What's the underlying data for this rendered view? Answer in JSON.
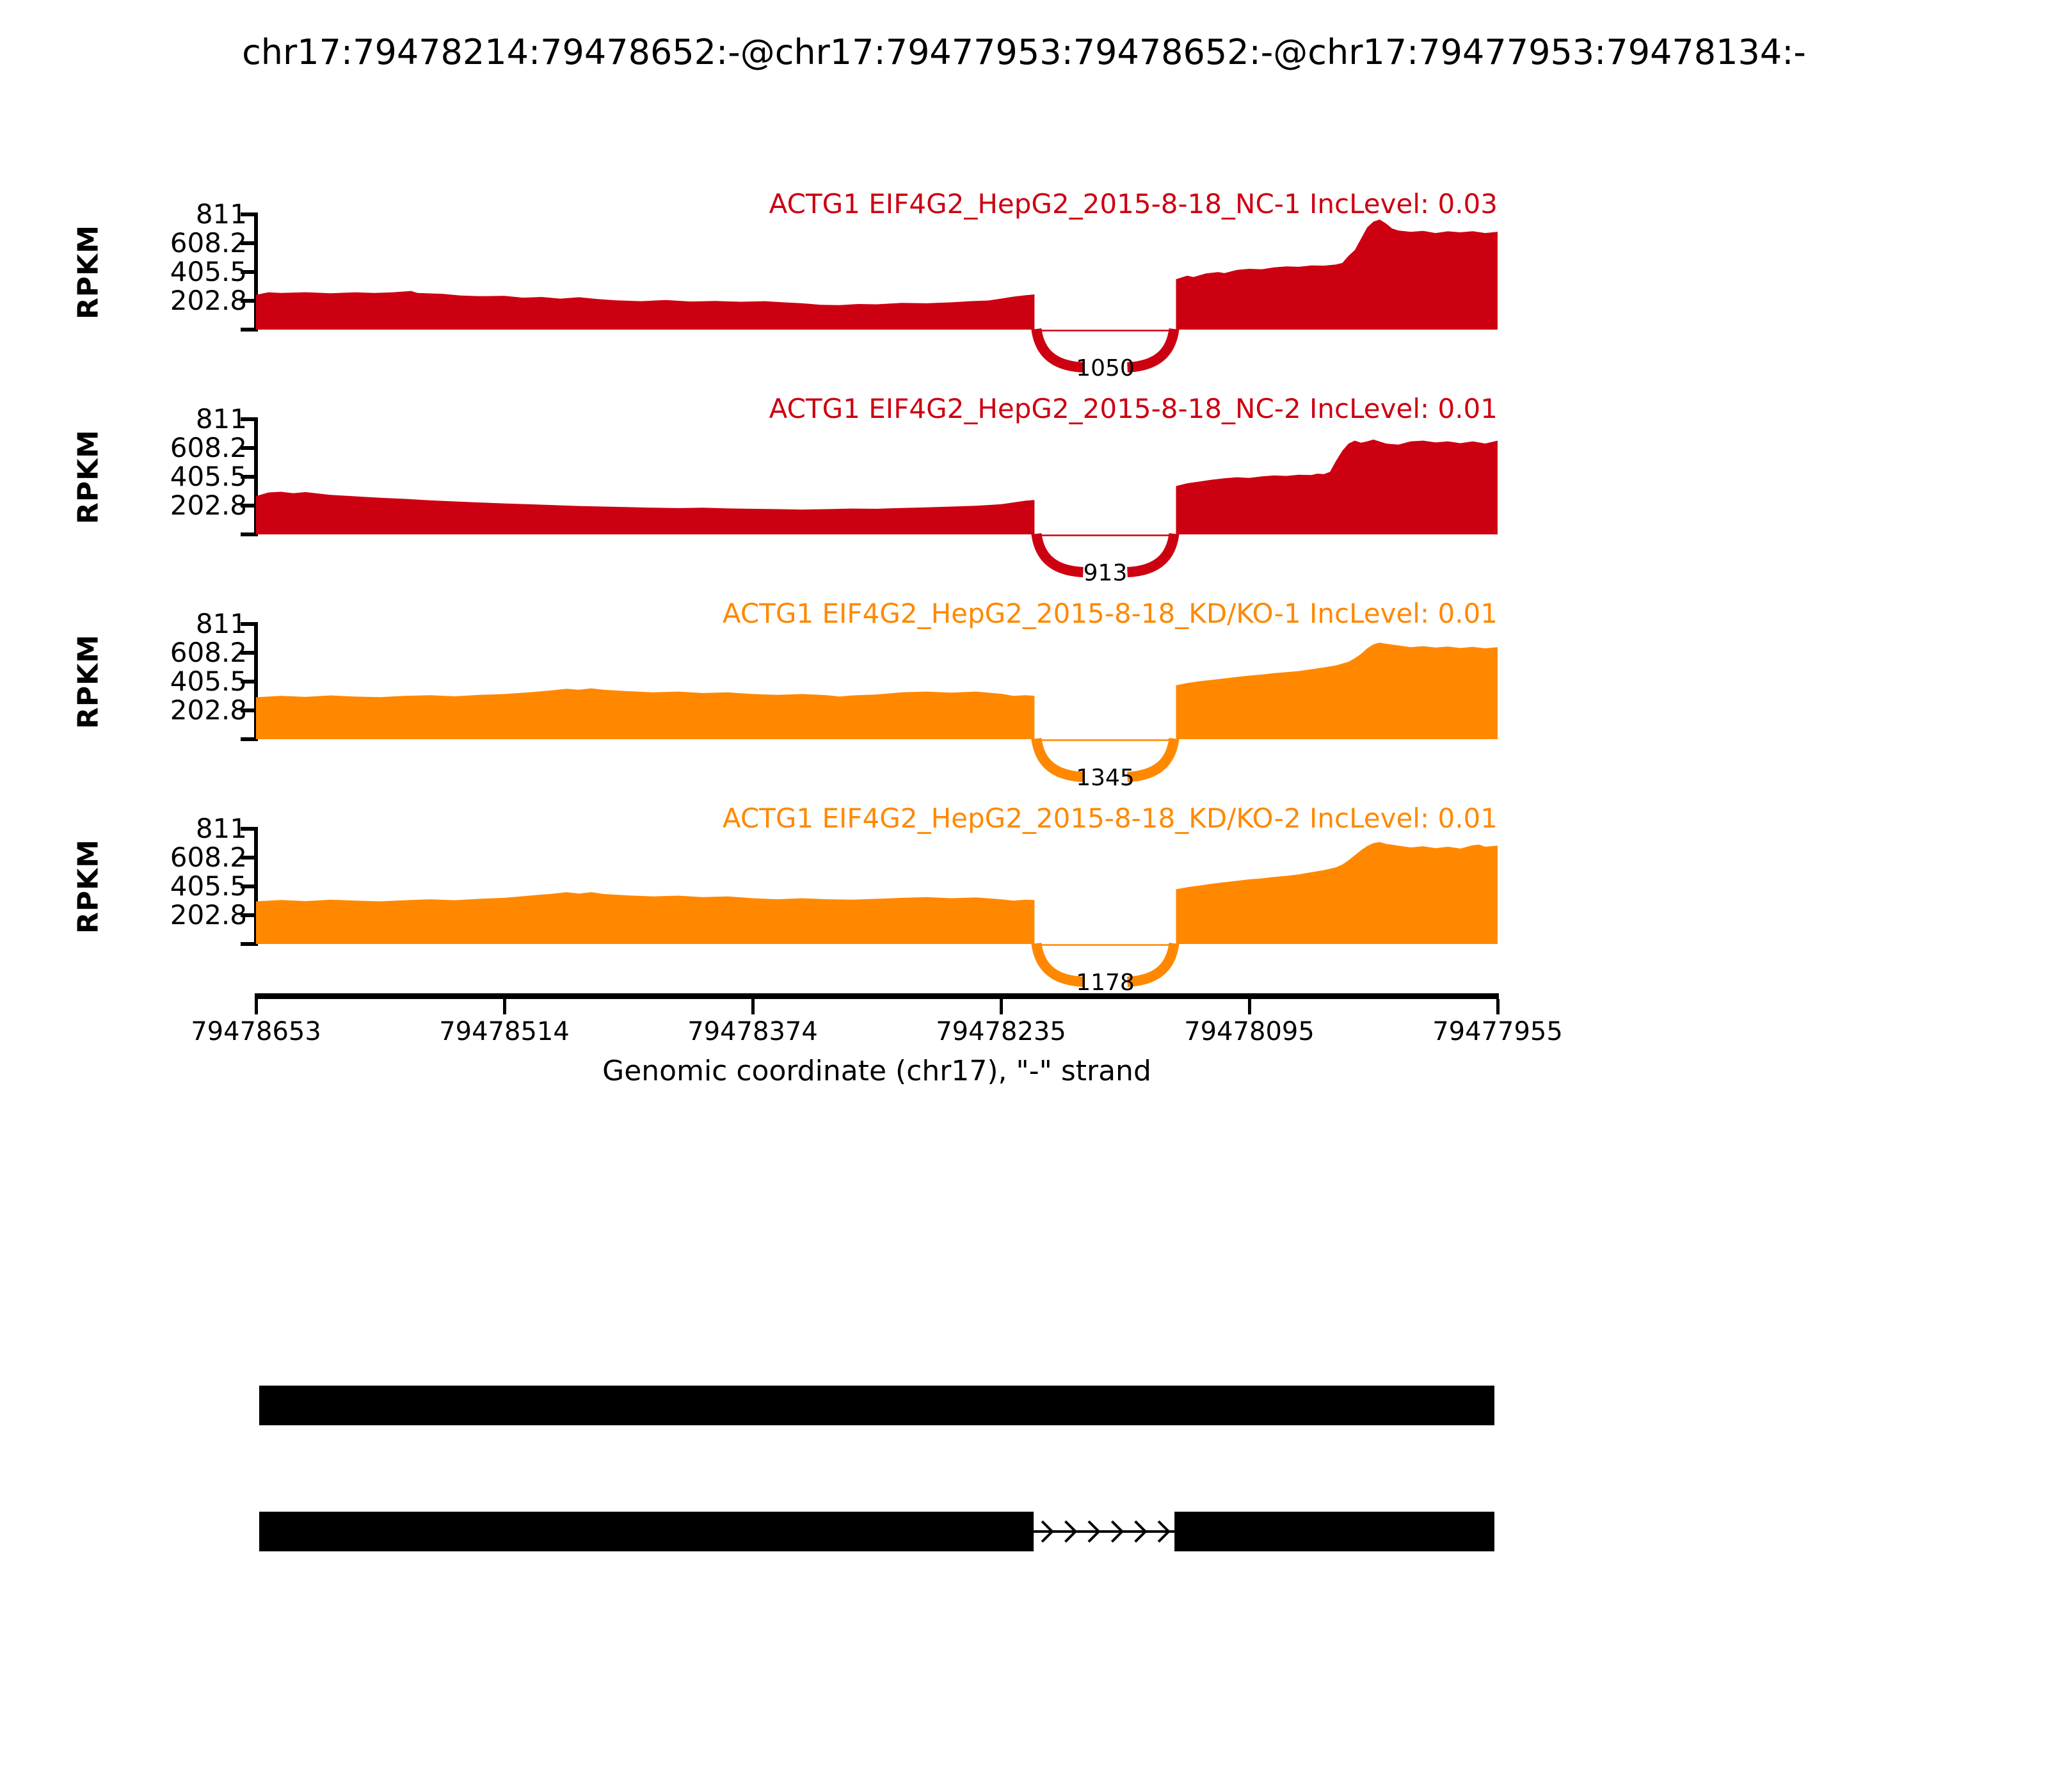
{
  "title": "chr17:79478214:79478652:-@chr17:79477953:79478652:-@chr17:79477953:79478134:-",
  "colors": {
    "red": "#CC0011",
    "orange": "#FF8800",
    "gene": "#000000"
  },
  "y_axis": {
    "label": "RPKM",
    "ticks": [
      "811",
      "608.2",
      "405.5",
      "202.8"
    ]
  },
  "x_axis": {
    "label": "Genomic coordinate (chr17), \"-\" strand",
    "ticks": [
      "79478653",
      "79478514",
      "79478374",
      "79478235",
      "79478095",
      "79477955"
    ]
  },
  "tracks": [
    {
      "label": "ACTG1 EIF4G2_HepG2_2015-8-18_NC-1 IncLevel: 0.03",
      "junction_count": "1050",
      "color": "#CC0011"
    },
    {
      "label": "ACTG1 EIF4G2_HepG2_2015-8-18_NC-2 IncLevel: 0.01",
      "junction_count": "913",
      "color": "#CC0011"
    },
    {
      "label": "ACTG1 EIF4G2_HepG2_2015-8-18_KD/KO-1 IncLevel: 0.01",
      "junction_count": "1345",
      "color": "#FF8800"
    },
    {
      "label": "ACTG1 EIF4G2_HepG2_2015-8-18_KD/KO-2 IncLevel: 0.01",
      "junction_count": "1178",
      "color": "#FF8800"
    }
  ],
  "chart_data": {
    "type": "area",
    "title": "chr17:79478214:79478652:-@chr17:79477953:79478652:-@chr17:79477953:79478134:-",
    "xlabel": "Genomic coordinate (chr17), \"-\" strand",
    "ylabel": "RPKM",
    "x_tick_labels": [
      79478653,
      79478514,
      79478374,
      79478235,
      79478095,
      79477955
    ],
    "x_axis_direction": "decreasing",
    "y_ticks": [
      811,
      608.2,
      405.5,
      202.8
    ],
    "ylim": [
      0,
      811
    ],
    "grid": false,
    "exon_gap_fractions": [
      0.627,
      0.741
    ],
    "series": [
      {
        "name": "ACTG1 EIF4G2_HepG2_2015-8-18_NC-1",
        "inc_level": 0.03,
        "junction_reads": 1050,
        "color": "#CC0011",
        "left_profile": [
          [
            0,
            245
          ],
          [
            0.01,
            262
          ],
          [
            0.02,
            258
          ],
          [
            0.04,
            263
          ],
          [
            0.06,
            256
          ],
          [
            0.08,
            262
          ],
          [
            0.095,
            258
          ],
          [
            0.11,
            262
          ],
          [
            0.125,
            272
          ],
          [
            0.13,
            258
          ],
          [
            0.15,
            252
          ],
          [
            0.165,
            240
          ],
          [
            0.18,
            235
          ],
          [
            0.2,
            238
          ],
          [
            0.215,
            225
          ],
          [
            0.23,
            230
          ],
          [
            0.245,
            218
          ],
          [
            0.26,
            228
          ],
          [
            0.275,
            215
          ],
          [
            0.29,
            206
          ],
          [
            0.31,
            200
          ],
          [
            0.33,
            208
          ],
          [
            0.35,
            198
          ],
          [
            0.37,
            202
          ],
          [
            0.39,
            196
          ],
          [
            0.41,
            200
          ],
          [
            0.425,
            192
          ],
          [
            0.44,
            185
          ],
          [
            0.455,
            175
          ],
          [
            0.47,
            172
          ],
          [
            0.485,
            180
          ],
          [
            0.5,
            178
          ],
          [
            0.52,
            188
          ],
          [
            0.54,
            185
          ],
          [
            0.56,
            192
          ],
          [
            0.575,
            200
          ],
          [
            0.59,
            205
          ],
          [
            0.6,
            218
          ],
          [
            0.61,
            232
          ],
          [
            0.62,
            242
          ],
          [
            0.627,
            248
          ]
        ],
        "right_profile": [
          [
            0.741,
            355
          ],
          [
            0.75,
            380
          ],
          [
            0.755,
            370
          ],
          [
            0.765,
            395
          ],
          [
            0.775,
            405
          ],
          [
            0.78,
            398
          ],
          [
            0.79,
            420
          ],
          [
            0.8,
            428
          ],
          [
            0.81,
            425
          ],
          [
            0.82,
            438
          ],
          [
            0.83,
            445
          ],
          [
            0.84,
            442
          ],
          [
            0.85,
            452
          ],
          [
            0.86,
            450
          ],
          [
            0.87,
            458
          ],
          [
            0.875,
            470
          ],
          [
            0.88,
            520
          ],
          [
            0.885,
            560
          ],
          [
            0.89,
            640
          ],
          [
            0.895,
            720
          ],
          [
            0.9,
            760
          ],
          [
            0.905,
            775
          ],
          [
            0.91,
            748
          ],
          [
            0.915,
            712
          ],
          [
            0.92,
            698
          ],
          [
            0.93,
            688
          ],
          [
            0.94,
            695
          ],
          [
            0.95,
            680
          ],
          [
            0.96,
            692
          ],
          [
            0.97,
            685
          ],
          [
            0.98,
            693
          ],
          [
            0.99,
            680
          ],
          [
            1,
            688
          ]
        ]
      },
      {
        "name": "ACTG1 EIF4G2_HepG2_2015-8-18_NC-2",
        "inc_level": 0.01,
        "junction_reads": 913,
        "color": "#CC0011",
        "left_profile": [
          [
            0,
            270
          ],
          [
            0.01,
            295
          ],
          [
            0.02,
            300
          ],
          [
            0.03,
            290
          ],
          [
            0.04,
            298
          ],
          [
            0.05,
            288
          ],
          [
            0.06,
            278
          ],
          [
            0.08,
            268
          ],
          [
            0.1,
            258
          ],
          [
            0.12,
            250
          ],
          [
            0.14,
            240
          ],
          [
            0.16,
            232
          ],
          [
            0.18,
            225
          ],
          [
            0.2,
            218
          ],
          [
            0.22,
            212
          ],
          [
            0.24,
            206
          ],
          [
            0.26,
            200
          ],
          [
            0.28,
            196
          ],
          [
            0.3,
            192
          ],
          [
            0.32,
            188
          ],
          [
            0.34,
            185
          ],
          [
            0.36,
            188
          ],
          [
            0.38,
            183
          ],
          [
            0.4,
            180
          ],
          [
            0.42,
            178
          ],
          [
            0.44,
            175
          ],
          [
            0.46,
            178
          ],
          [
            0.48,
            182
          ],
          [
            0.5,
            180
          ],
          [
            0.52,
            186
          ],
          [
            0.54,
            190
          ],
          [
            0.56,
            196
          ],
          [
            0.58,
            202
          ],
          [
            0.6,
            212
          ],
          [
            0.61,
            225
          ],
          [
            0.62,
            238
          ],
          [
            0.627,
            242
          ]
        ],
        "right_profile": [
          [
            0.741,
            340
          ],
          [
            0.75,
            360
          ],
          [
            0.76,
            372
          ],
          [
            0.77,
            385
          ],
          [
            0.78,
            395
          ],
          [
            0.79,
            402
          ],
          [
            0.8,
            398
          ],
          [
            0.81,
            408
          ],
          [
            0.82,
            415
          ],
          [
            0.83,
            412
          ],
          [
            0.84,
            420
          ],
          [
            0.85,
            418
          ],
          [
            0.855,
            428
          ],
          [
            0.86,
            424
          ],
          [
            0.865,
            440
          ],
          [
            0.87,
            520
          ],
          [
            0.875,
            590
          ],
          [
            0.88,
            640
          ],
          [
            0.885,
            660
          ],
          [
            0.89,
            645
          ],
          [
            0.895,
            655
          ],
          [
            0.9,
            668
          ],
          [
            0.91,
            640
          ],
          [
            0.92,
            632
          ],
          [
            0.93,
            655
          ],
          [
            0.94,
            660
          ],
          [
            0.95,
            648
          ],
          [
            0.96,
            655
          ],
          [
            0.97,
            642
          ],
          [
            0.98,
            655
          ],
          [
            0.99,
            640
          ],
          [
            1,
            660
          ]
        ]
      },
      {
        "name": "ACTG1 EIF4G2_HepG2_2015-8-18_KD/KO-1",
        "inc_level": 0.01,
        "junction_reads": 1345,
        "color": "#FF8800",
        "left_profile": [
          [
            0,
            295
          ],
          [
            0.02,
            305
          ],
          [
            0.04,
            298
          ],
          [
            0.06,
            308
          ],
          [
            0.08,
            300
          ],
          [
            0.1,
            296
          ],
          [
            0.12,
            305
          ],
          [
            0.14,
            310
          ],
          [
            0.16,
            302
          ],
          [
            0.18,
            312
          ],
          [
            0.2,
            318
          ],
          [
            0.22,
            330
          ],
          [
            0.24,
            345
          ],
          [
            0.25,
            355
          ],
          [
            0.26,
            348
          ],
          [
            0.27,
            358
          ],
          [
            0.28,
            348
          ],
          [
            0.3,
            338
          ],
          [
            0.32,
            330
          ],
          [
            0.34,
            335
          ],
          [
            0.36,
            325
          ],
          [
            0.38,
            330
          ],
          [
            0.4,
            318
          ],
          [
            0.42,
            312
          ],
          [
            0.44,
            318
          ],
          [
            0.46,
            310
          ],
          [
            0.47,
            300
          ],
          [
            0.48,
            308
          ],
          [
            0.5,
            315
          ],
          [
            0.52,
            330
          ],
          [
            0.54,
            335
          ],
          [
            0.56,
            328
          ],
          [
            0.58,
            335
          ],
          [
            0.6,
            320
          ],
          [
            0.61,
            305
          ],
          [
            0.62,
            310
          ],
          [
            0.627,
            305
          ]
        ],
        "right_profile": [
          [
            0.741,
            380
          ],
          [
            0.75,
            395
          ],
          [
            0.76,
            408
          ],
          [
            0.77,
            418
          ],
          [
            0.78,
            428
          ],
          [
            0.79,
            438
          ],
          [
            0.8,
            448
          ],
          [
            0.81,
            455
          ],
          [
            0.82,
            465
          ],
          [
            0.83,
            472
          ],
          [
            0.84,
            480
          ],
          [
            0.85,
            492
          ],
          [
            0.86,
            505
          ],
          [
            0.87,
            520
          ],
          [
            0.88,
            545
          ],
          [
            0.885,
            570
          ],
          [
            0.89,
            600
          ],
          [
            0.895,
            640
          ],
          [
            0.9,
            668
          ],
          [
            0.905,
            680
          ],
          [
            0.91,
            672
          ],
          [
            0.92,
            660
          ],
          [
            0.93,
            648
          ],
          [
            0.94,
            655
          ],
          [
            0.95,
            645
          ],
          [
            0.96,
            652
          ],
          [
            0.97,
            642
          ],
          [
            0.98,
            650
          ],
          [
            0.99,
            640
          ],
          [
            1,
            648
          ]
        ]
      },
      {
        "name": "ACTG1 EIF4G2_HepG2_2015-8-18_KD/KO-2",
        "inc_level": 0.01,
        "junction_reads": 1178,
        "color": "#FF8800",
        "left_profile": [
          [
            0,
            300
          ],
          [
            0.02,
            310
          ],
          [
            0.04,
            302
          ],
          [
            0.06,
            312
          ],
          [
            0.08,
            305
          ],
          [
            0.1,
            300
          ],
          [
            0.12,
            308
          ],
          [
            0.14,
            315
          ],
          [
            0.16,
            308
          ],
          [
            0.18,
            318
          ],
          [
            0.2,
            325
          ],
          [
            0.22,
            340
          ],
          [
            0.24,
            355
          ],
          [
            0.25,
            365
          ],
          [
            0.26,
            355
          ],
          [
            0.27,
            365
          ],
          [
            0.28,
            352
          ],
          [
            0.3,
            342
          ],
          [
            0.32,
            335
          ],
          [
            0.34,
            340
          ],
          [
            0.36,
            330
          ],
          [
            0.38,
            335
          ],
          [
            0.4,
            322
          ],
          [
            0.42,
            315
          ],
          [
            0.44,
            322
          ],
          [
            0.46,
            315
          ],
          [
            0.48,
            312
          ],
          [
            0.5,
            318
          ],
          [
            0.52,
            325
          ],
          [
            0.54,
            330
          ],
          [
            0.56,
            322
          ],
          [
            0.58,
            328
          ],
          [
            0.6,
            315
          ],
          [
            0.61,
            305
          ],
          [
            0.62,
            312
          ],
          [
            0.627,
            310
          ]
        ],
        "right_profile": [
          [
            0.741,
            385
          ],
          [
            0.75,
            400
          ],
          [
            0.76,
            412
          ],
          [
            0.77,
            425
          ],
          [
            0.78,
            435
          ],
          [
            0.79,
            445
          ],
          [
            0.8,
            455
          ],
          [
            0.81,
            462
          ],
          [
            0.82,
            472
          ],
          [
            0.83,
            480
          ],
          [
            0.84,
            490
          ],
          [
            0.85,
            505
          ],
          [
            0.86,
            520
          ],
          [
            0.87,
            540
          ],
          [
            0.875,
            560
          ],
          [
            0.88,
            590
          ],
          [
            0.885,
            625
          ],
          [
            0.89,
            660
          ],
          [
            0.895,
            690
          ],
          [
            0.9,
            710
          ],
          [
            0.905,
            718
          ],
          [
            0.91,
            705
          ],
          [
            0.92,
            692
          ],
          [
            0.93,
            680
          ],
          [
            0.94,
            688
          ],
          [
            0.95,
            675
          ],
          [
            0.96,
            685
          ],
          [
            0.97,
            672
          ],
          [
            0.98,
            695
          ],
          [
            0.985,
            700
          ],
          [
            0.99,
            685
          ],
          [
            1,
            692
          ]
        ]
      }
    ],
    "gene_model": {
      "color": "#000000",
      "isoforms": [
        {
          "exon_fractions": [
            [
              0,
              1
            ]
          ],
          "intron_arrow_count": 0
        },
        {
          "exon_fractions": [
            [
              0,
              0.627
            ],
            [
              0.741,
              1
            ]
          ],
          "intron_arrow_count": 6
        }
      ]
    }
  }
}
